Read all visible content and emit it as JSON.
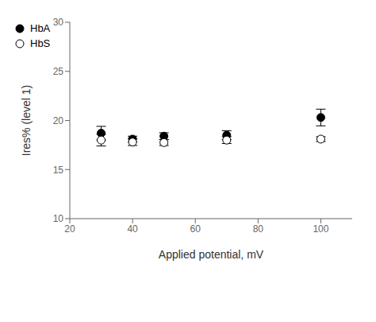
{
  "chart_data": {
    "type": "scatter",
    "x": [
      30,
      40,
      50,
      70,
      100
    ],
    "series": [
      {
        "name": "HbA",
        "color": "#000000",
        "marker": "filled",
        "values": [
          18.7,
          18.1,
          18.4,
          18.5,
          20.3
        ],
        "yerr": [
          0.7,
          0.3,
          0.35,
          0.45,
          0.85
        ]
      },
      {
        "name": "HbS",
        "color": "#000000",
        "marker": "open",
        "values": [
          18.0,
          17.8,
          17.75,
          18.0,
          18.1
        ],
        "yerr": [
          0.6,
          0.35,
          0.3,
          0.35,
          0.25
        ]
      }
    ],
    "xlabel": "Applied potential, mV",
    "ylabel": "Ires% (level 1)",
    "xlim": [
      20,
      110
    ],
    "ylim": [
      10,
      30
    ],
    "xticks": [
      20,
      40,
      60,
      80,
      100
    ],
    "yticks": [
      10,
      15,
      20,
      25,
      30
    ],
    "legend": "upper right",
    "grid": false
  }
}
